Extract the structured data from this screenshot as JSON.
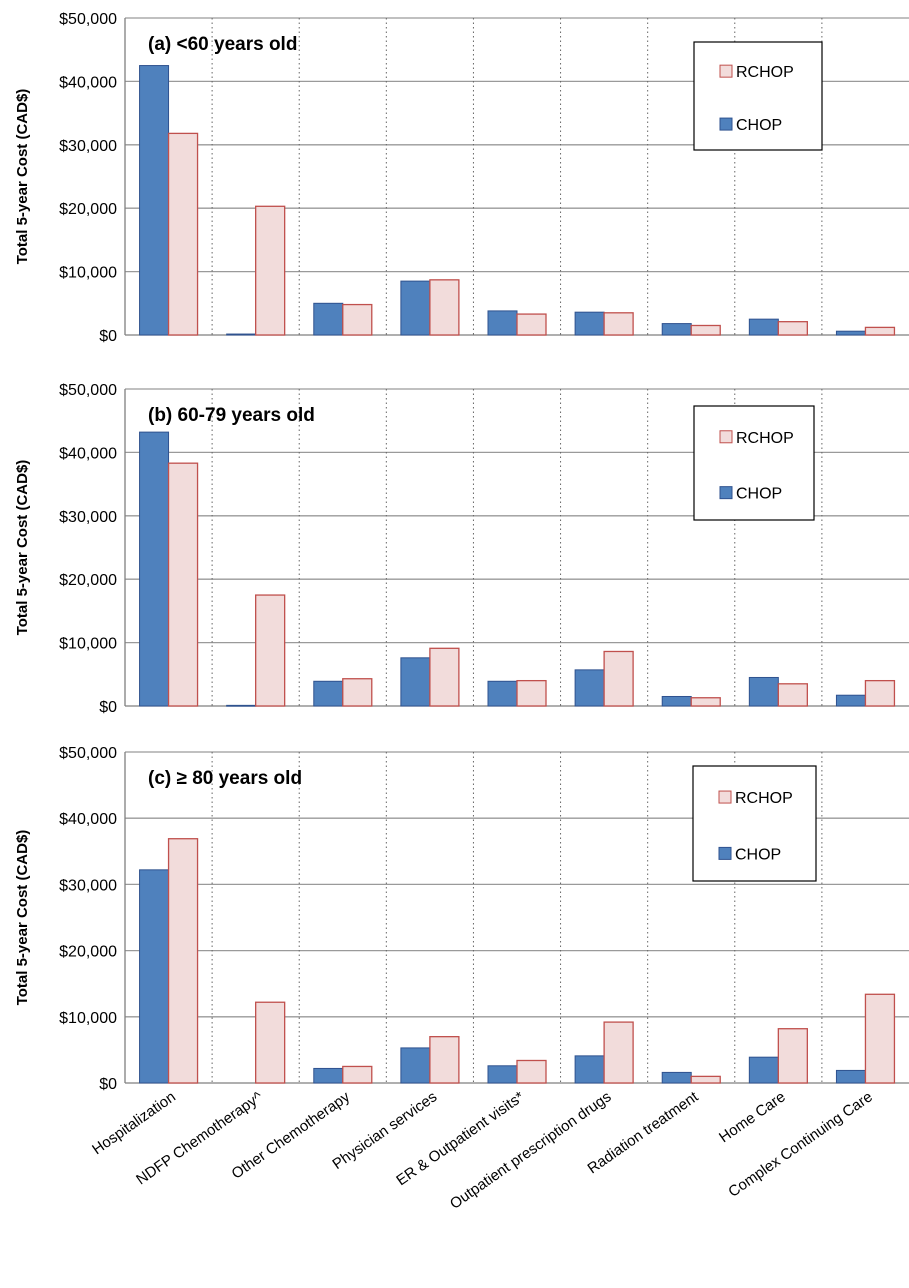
{
  "chart_data": {
    "type": "bar",
    "orientation": "vertical",
    "categories": [
      "Hospitalization",
      "NDFP Chemotherapy^",
      "Other Chemotherapy",
      "Physician services",
      "ER & Outpatient visits*",
      "Outpatient prescription drugs",
      "Radiation treatment",
      "Home Care",
      "Complex Continuing Care"
    ],
    "ylabel": "Total 5-year Cost (CAD$)",
    "ylim": [
      0,
      50000
    ],
    "yticks": [
      "$0",
      "$10,000",
      "$20,000",
      "$30,000",
      "$40,000",
      "$50,000"
    ],
    "grid": {
      "horizontal": true,
      "vertical_separators": "dotted"
    },
    "legend": {
      "placement": "top-right",
      "order": [
        "RCHOP",
        "CHOP"
      ]
    },
    "colors": {
      "CHOP_fill": "#4f81bd",
      "CHOP_stroke": "#2f528f",
      "RCHOP_fill": "#f2dcdb",
      "RCHOP_stroke": "#c0504d",
      "grid": "#9a9a9a"
    },
    "panels": [
      {
        "title": "(a) <60 years old",
        "series": [
          {
            "name": "CHOP",
            "values": [
              42500,
              150,
              5000,
              8500,
              3800,
              3600,
              1800,
              2500,
              600
            ]
          },
          {
            "name": "RCHOP",
            "values": [
              31800,
              20300,
              4800,
              8700,
              3300,
              3500,
              1500,
              2100,
              1200
            ]
          }
        ]
      },
      {
        "title": "(b) 60-79 years old",
        "series": [
          {
            "name": "CHOP",
            "values": [
              43200,
              100,
              3900,
              7600,
              3900,
              5700,
              1500,
              4500,
              1700
            ]
          },
          {
            "name": "RCHOP",
            "values": [
              38300,
              17500,
              4300,
              9100,
              4000,
              8600,
              1300,
              3500,
              4000
            ]
          }
        ]
      },
      {
        "title": "(c) ≥ 80 years old",
        "series": [
          {
            "name": "CHOP",
            "values": [
              32200,
              0,
              2200,
              5300,
              2600,
              4100,
              1600,
              3900,
              1900
            ]
          },
          {
            "name": "RCHOP",
            "values": [
              36900,
              12200,
              2500,
              7000,
              3400,
              9200,
              1000,
              8200,
              13400
            ]
          }
        ]
      }
    ]
  }
}
